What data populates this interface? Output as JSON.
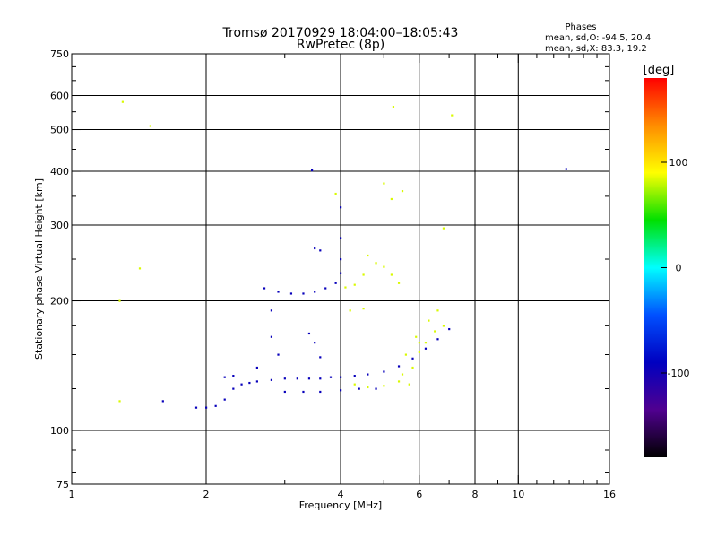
{
  "chart_data": {
    "type": "scatter",
    "title": "Tromsø 20170929 18:04:00–18:05:43",
    "subtitle": "RwPretec (8p)",
    "xlabel": "Frequency [MHz]",
    "ylabel": "Stationary phase Virtual Height [km]",
    "x_scale": "log",
    "y_scale": "log",
    "xlim": [
      1,
      16
    ],
    "ylim": [
      75,
      750
    ],
    "x_ticks": [
      1,
      2,
      4,
      6,
      8,
      10,
      16
    ],
    "y_ticks": [
      75,
      100,
      200,
      300,
      400,
      500,
      600,
      750
    ],
    "grid": true,
    "stats": {
      "heading": "Phases",
      "o_line": "mean, sd,O: -94.5, 20.4",
      "x_line": "mean, sd,X: 83.3, 19.2"
    },
    "colorbar": {
      "label": "[deg]",
      "range": [
        -180,
        180
      ],
      "ticks": [
        100,
        0,
        -100
      ],
      "colors": [
        "#ff0000",
        "#ff8c00",
        "#ffff00",
        "#00e000",
        "#00ffff",
        "#0050ff",
        "#0000c0",
        "#500090",
        "#000000"
      ]
    },
    "series": [
      {
        "name": "O",
        "phase": -94.5,
        "points": [
          [
            1.9,
            113
          ],
          [
            2.0,
            113
          ],
          [
            2.1,
            114
          ],
          [
            2.2,
            118
          ],
          [
            2.3,
            125
          ],
          [
            2.4,
            128
          ],
          [
            2.5,
            129
          ],
          [
            2.6,
            130
          ],
          [
            2.8,
            131
          ],
          [
            3.0,
            132
          ],
          [
            3.2,
            132
          ],
          [
            3.4,
            132
          ],
          [
            3.6,
            132
          ],
          [
            3.8,
            133
          ],
          [
            4.0,
            133
          ],
          [
            4.3,
            134
          ],
          [
            4.6,
            135
          ],
          [
            5.0,
            137
          ],
          [
            5.4,
            141
          ],
          [
            5.8,
            147
          ],
          [
            6.2,
            155
          ],
          [
            6.6,
            163
          ],
          [
            7.0,
            172
          ],
          [
            2.7,
            214
          ],
          [
            2.9,
            210
          ],
          [
            3.1,
            208
          ],
          [
            3.3,
            208
          ],
          [
            3.5,
            210
          ],
          [
            3.7,
            214
          ],
          [
            3.9,
            220
          ],
          [
            4.0,
            232
          ],
          [
            4.0,
            250
          ],
          [
            4.0,
            280
          ],
          [
            4.0,
            330
          ],
          [
            3.5,
            265
          ],
          [
            3.6,
            262
          ],
          [
            2.8,
            190
          ],
          [
            2.8,
            165
          ],
          [
            2.9,
            150
          ],
          [
            3.4,
            168
          ],
          [
            3.5,
            160
          ],
          [
            3.6,
            148
          ],
          [
            3.0,
            123
          ],
          [
            3.3,
            123
          ],
          [
            3.6,
            123
          ],
          [
            4.0,
            124
          ],
          [
            4.4,
            125
          ],
          [
            4.8,
            125
          ],
          [
            1.6,
            117
          ],
          [
            12.8,
            405
          ],
          [
            3.45,
            402
          ],
          [
            2.2,
            133
          ],
          [
            2.3,
            134
          ],
          [
            2.6,
            140
          ]
        ]
      },
      {
        "name": "X",
        "phase": 83.3,
        "points": [
          [
            4.3,
            128
          ],
          [
            4.6,
            126
          ],
          [
            5.0,
            127
          ],
          [
            5.4,
            130
          ],
          [
            5.8,
            140
          ],
          [
            6.0,
            152
          ],
          [
            6.2,
            160
          ],
          [
            6.5,
            170
          ],
          [
            6.8,
            175
          ],
          [
            5.6,
            150
          ],
          [
            5.9,
            165
          ],
          [
            4.1,
            215
          ],
          [
            4.3,
            218
          ],
          [
            4.5,
            230
          ],
          [
            4.6,
            255
          ],
          [
            4.8,
            245
          ],
          [
            5.0,
            240
          ],
          [
            5.2,
            230
          ],
          [
            5.4,
            220
          ],
          [
            4.2,
            190
          ],
          [
            4.5,
            192
          ],
          [
            3.9,
            355
          ],
          [
            5.5,
            135
          ],
          [
            5.7,
            128
          ],
          [
            6.8,
            295
          ],
          [
            1.5,
            510
          ],
          [
            1.3,
            580
          ],
          [
            5.25,
            565
          ],
          [
            7.1,
            540
          ],
          [
            1.42,
            238
          ],
          [
            1.28,
            200
          ],
          [
            1.28,
            117
          ],
          [
            5.0,
            375
          ],
          [
            5.2,
            345
          ],
          [
            5.5,
            360
          ],
          [
            6.0,
            160
          ],
          [
            6.3,
            180
          ],
          [
            6.6,
            190
          ]
        ]
      }
    ]
  }
}
